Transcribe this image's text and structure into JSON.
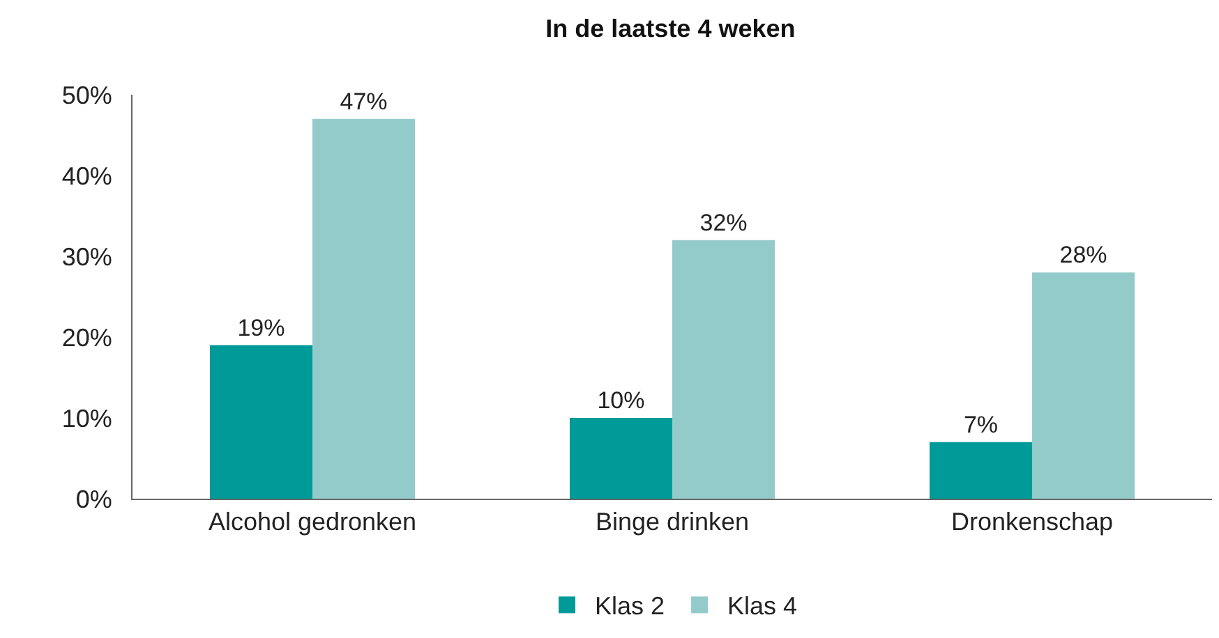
{
  "chart_data": {
    "type": "bar",
    "title": "In de laatste 4 weken",
    "categories": [
      "Alcohol gedronken",
      "Binge drinken",
      "Dronkenschap"
    ],
    "series": [
      {
        "name": "Klas 2",
        "color": "#009b98",
        "values": [
          19,
          10,
          7
        ],
        "value_labels": [
          "19%",
          "10%",
          "7%"
        ]
      },
      {
        "name": "Klas 4",
        "color": "#93cbcb",
        "values": [
          47,
          32,
          28
        ],
        "value_labels": [
          "47%",
          "32%",
          "28%"
        ]
      }
    ],
    "ylim": [
      0,
      50
    ],
    "yticks": [
      {
        "value": 0,
        "label": "0%"
      },
      {
        "value": 10,
        "label": "10%"
      },
      {
        "value": 20,
        "label": "20%"
      },
      {
        "value": 30,
        "label": "30%"
      },
      {
        "value": 40,
        "label": "40%"
      },
      {
        "value": 50,
        "label": "50%"
      }
    ],
    "grid": false,
    "legend": "bottom"
  }
}
